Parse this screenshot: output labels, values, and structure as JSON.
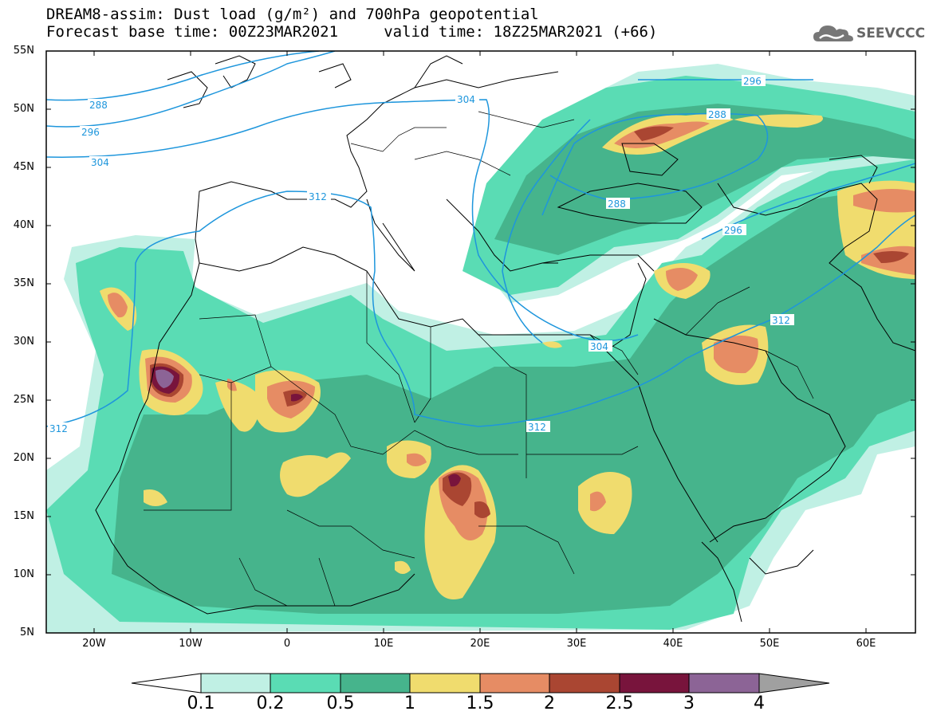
{
  "title": {
    "line1": "DREAM8-assim: Dust load (g/m²) and 700hPa geopotential",
    "line2": "Forecast base time: 00Z23MAR2021     valid time: 18Z25MAR2021 (+66)"
  },
  "logo": {
    "text": "SEEVCCC",
    "icon": "cloud-icon"
  },
  "axes": {
    "lat_ticks": [
      "55N",
      "50N",
      "45N",
      "40N",
      "35N",
      "30N",
      "25N",
      "20N",
      "15N",
      "10N",
      "5N"
    ],
    "lon_ticks": [
      "20W",
      "10W",
      "0",
      "10E",
      "20E",
      "30E",
      "40E",
      "50E",
      "60E"
    ],
    "lat_range": [
      5,
      55
    ],
    "lon_range": [
      -25,
      65
    ]
  },
  "geopotential_contours": [
    "288",
    "296",
    "304",
    "312"
  ],
  "colorbar": {
    "levels": [
      "0.1",
      "0.2",
      "0.5",
      "1",
      "1.5",
      "2",
      "2.5",
      "3",
      "4"
    ],
    "colors": [
      "#c0f0e4",
      "#5adcb4",
      "#46b48c",
      "#f0dc6e",
      "#e68c64",
      "#aa4632",
      "#78143c",
      "#8c6496",
      "#a0a0a0"
    ]
  },
  "colors": {
    "contour": "#1e96dc",
    "coast": "#000000"
  }
}
